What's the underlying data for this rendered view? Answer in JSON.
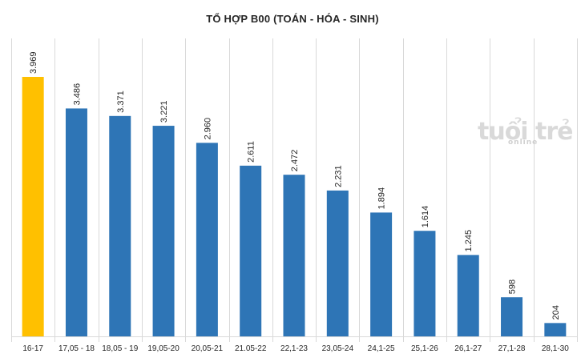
{
  "chart_data": {
    "type": "bar",
    "title": "TỔ HỢP B00 (TOÁN - HÓA - SINH)",
    "categories": [
      "16-17",
      "17,05 - 18",
      "18,05 - 19",
      "19,05-20",
      "20,05-21",
      "21.05-22",
      "22,1-23",
      "23,05-24",
      "24,1-25",
      "25,1-26",
      "26,1-27",
      "27,1-28",
      "28,1-30"
    ],
    "values": [
      3969,
      3486,
      3371,
      3221,
      2960,
      2611,
      2472,
      2231,
      1894,
      1614,
      1245,
      598,
      204
    ],
    "value_labels": [
      "3.969",
      "3.486",
      "3.371",
      "3.221",
      "2.960",
      "2.611",
      "2.472",
      "2.231",
      "1.894",
      "1.614",
      "1.245",
      "598",
      "204"
    ],
    "highlight_index": 0,
    "ylim": [
      0,
      4000
    ],
    "grid": "vertical-category-separators",
    "legend": "none",
    "colors": {
      "bar": "#2E75B6",
      "highlight": "#FFC000",
      "grid": "#D9D9D9",
      "text": "#262626"
    }
  },
  "watermark": {
    "brand": "tuổi trẻ",
    "sub": "online"
  }
}
